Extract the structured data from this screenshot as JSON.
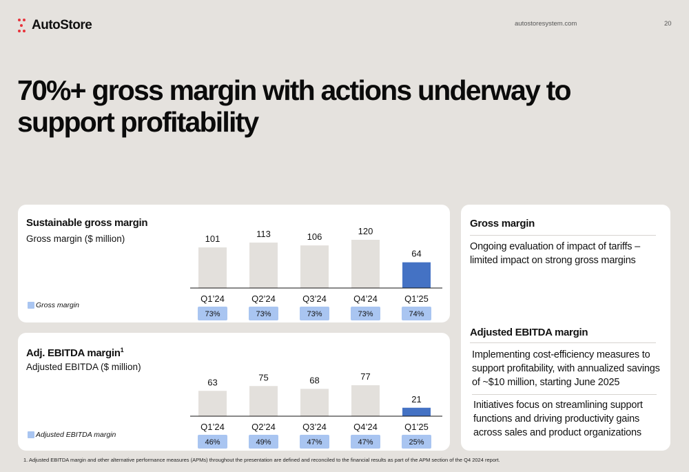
{
  "header": {
    "logo_text": "AutoStore",
    "website": "autostoresystem.com",
    "page_number": "20"
  },
  "headline": "70%+ gross margin with actions underway to support profitability",
  "colors": {
    "background": "#e5e2de",
    "bar_default": "#e3e0dc",
    "bar_highlight": "#4472c4",
    "pill": "#a9c5f1",
    "logo_accent": "#e8333b"
  },
  "gross_panel": {
    "title": "Sustainable gross margin",
    "subtitle": "Gross margin ($ million)",
    "legend": "Gross margin"
  },
  "ebitda_panel": {
    "title": "Adj. EBITDA margin",
    "title_superscript": "1",
    "subtitle": "Adjusted EBITDA ($ million)",
    "legend": "Adjusted EBITDA margin"
  },
  "right_panel": {
    "gross_heading": "Gross margin",
    "gross_text": "Ongoing evaluation of impact of tariffs – limited impact on strong gross margins",
    "ebitda_heading": "Adjusted EBITDA margin",
    "ebitda_text_1": "Implementing cost-efficiency measures to support profitability, with annualized savings of ~$10 million, starting June 2025",
    "ebitda_text_2": "Initiatives focus on streamlining support functions and driving productivity gains across sales and product organizations"
  },
  "footnote": {
    "marker": "1.",
    "text": "Adjusted EBITDA margin and other alternative performance measures (APMs) throughout the presentation are defined and reconciled to the financial results as part of the APM section of the Q4 2024 report."
  },
  "chart_data": [
    {
      "type": "bar",
      "title": "Sustainable gross margin",
      "ylabel": "Gross margin ($ million)",
      "categories": [
        "Q1’24",
        "Q2’24",
        "Q3’24",
        "Q4’24",
        "Q1’25"
      ],
      "values": [
        101,
        113,
        106,
        120,
        64
      ],
      "margin_labels": [
        "73%",
        "73%",
        "73%",
        "73%",
        "74%"
      ],
      "highlight_index": 4,
      "ylim": [
        0,
        120
      ],
      "legend": "Gross margin",
      "grid": false
    },
    {
      "type": "bar",
      "title": "Adj. EBITDA margin",
      "ylabel": "Adjusted EBITDA ($ million)",
      "categories": [
        "Q1’24",
        "Q2’24",
        "Q3’24",
        "Q4’24",
        "Q1’25"
      ],
      "values": [
        63,
        75,
        68,
        77,
        21
      ],
      "margin_labels": [
        "46%",
        "49%",
        "47%",
        "47%",
        "25%"
      ],
      "highlight_index": 4,
      "ylim": [
        0,
        120
      ],
      "legend": "Adjusted EBITDA margin",
      "grid": false
    }
  ]
}
